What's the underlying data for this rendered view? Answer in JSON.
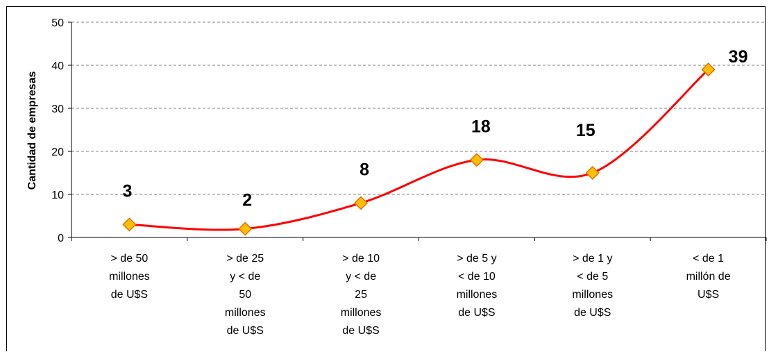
{
  "chart_data": {
    "type": "line",
    "title": "",
    "xlabel": "",
    "ylabel": "Cantidad de empresas",
    "categories": [
      [
        "> de 50",
        "millones",
        "de U$S"
      ],
      [
        "> de 25",
        "y < de",
        "50",
        "millones",
        "de U$S"
      ],
      [
        "> de 10",
        "y < de",
        "25",
        "millones",
        "de U$S"
      ],
      [
        "> de 5 y",
        "< de 10",
        "millones",
        "de U$S"
      ],
      [
        "> de 1 y",
        "< de 5",
        "millones",
        "de U$S"
      ],
      [
        "< de 1",
        "millón de",
        "U$S"
      ]
    ],
    "values": [
      3,
      2,
      8,
      18,
      15,
      39
    ],
    "data_labels": [
      "3",
      "2",
      "8",
      "18",
      "15",
      "39"
    ],
    "ylim": [
      0,
      50
    ],
    "yticks": [
      0,
      10,
      20,
      30,
      40,
      50
    ],
    "grid": true,
    "smoothed": true,
    "legend": "none",
    "colors": {
      "line": "#ff0000",
      "marker_fill": "#ffc000",
      "marker_stroke": "#e46c0a",
      "grid": "#808080"
    }
  }
}
